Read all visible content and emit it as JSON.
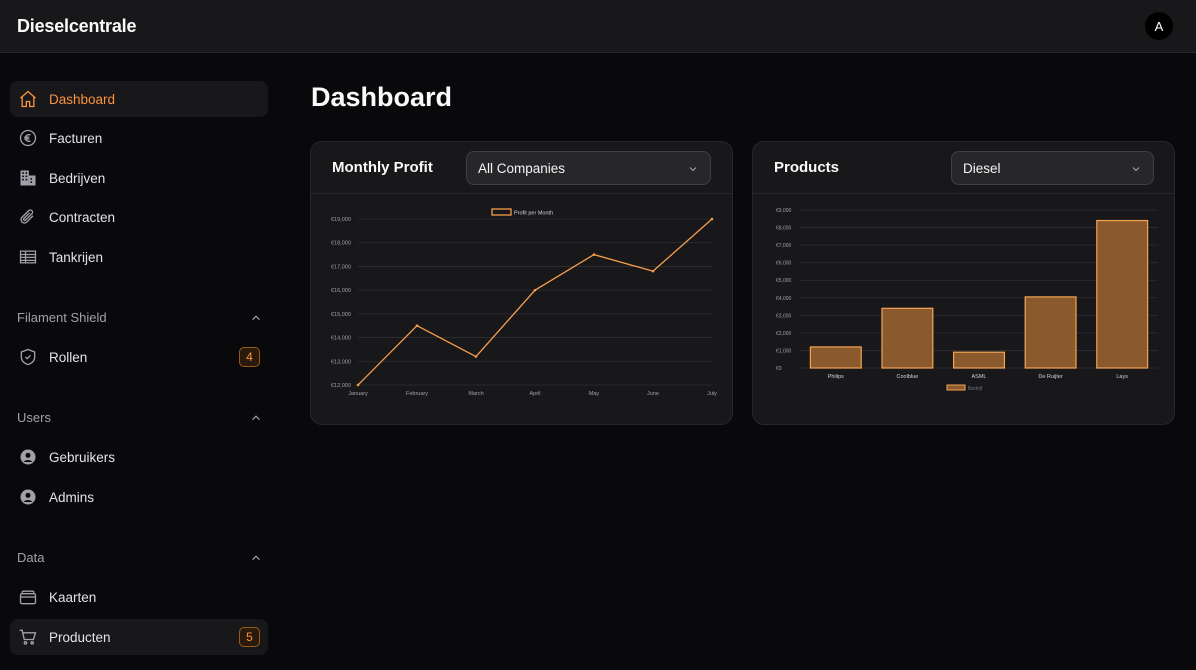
{
  "app": {
    "title": "Dieselcentrale",
    "avatar_initial": "A"
  },
  "sidebar": {
    "main_items": [
      {
        "label": "Dashboard",
        "icon": "home-icon",
        "active": true
      },
      {
        "label": "Facturen",
        "icon": "euro-icon"
      },
      {
        "label": "Bedrijven",
        "icon": "building-icon"
      },
      {
        "label": "Contracten",
        "icon": "paperclip-icon"
      },
      {
        "label": "Tankrijen",
        "icon": "table-icon"
      }
    ],
    "groups": [
      {
        "label": "Filament Shield",
        "items": [
          {
            "label": "Rollen",
            "icon": "shield-check-icon",
            "badge": "4"
          }
        ]
      },
      {
        "label": "Users",
        "items": [
          {
            "label": "Gebruikers",
            "icon": "user-circle-icon"
          },
          {
            "label": "Admins",
            "icon": "user-circle-icon"
          }
        ]
      },
      {
        "label": "Data",
        "items": [
          {
            "label": "Kaarten",
            "icon": "card-stack-icon"
          },
          {
            "label": "Producten",
            "icon": "shopping-cart-icon",
            "badge": "5",
            "highlight": true
          }
        ]
      }
    ]
  },
  "page": {
    "title": "Dashboard"
  },
  "profit_card": {
    "title": "Monthly Profit",
    "filter_value": "All Companies"
  },
  "products_card": {
    "title": "Products",
    "filter_value": "Diesel"
  },
  "colors": {
    "accent": "#fb923c",
    "line": "#f59e4a",
    "bar_fill": "#8a5a2e",
    "bar_stroke": "#f5a454"
  },
  "chart_data": [
    {
      "type": "line",
      "legend": "Profit per Month",
      "categories": [
        "January",
        "February",
        "March",
        "April",
        "May",
        "June",
        "July"
      ],
      "values": [
        12000,
        14500,
        13200,
        16000,
        17500,
        16800,
        19000
      ],
      "yticks": [
        "€12,000",
        "€13,000",
        "€14,000",
        "€15,000",
        "€16,000",
        "€17,000",
        "€18,000",
        "€19,000"
      ],
      "ylim": [
        12000,
        19000
      ]
    },
    {
      "type": "bar",
      "legend": "Bedrijf",
      "categories": [
        "Philips",
        "Coolblue",
        "ASML",
        "De Ruijter",
        "Lays"
      ],
      "values": [
        1200,
        3400,
        900,
        4050,
        8400
      ],
      "yticks": [
        "€0",
        "€1,000",
        "€2,000",
        "€3,000",
        "€4,000",
        "€5,000",
        "€6,000",
        "€7,000",
        "€8,000",
        "€9,000"
      ],
      "ylim": [
        0,
        9000
      ]
    }
  ]
}
